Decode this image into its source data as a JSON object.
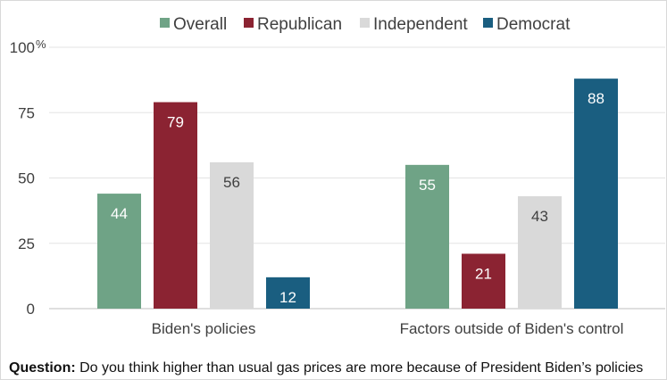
{
  "chart_data": {
    "type": "bar",
    "categories": [
      "Biden's policies",
      "Factors outside of Biden's control"
    ],
    "series": [
      {
        "name": "Overall",
        "color": "#6fa386",
        "values": [
          44,
          55
        ]
      },
      {
        "name": "Republican",
        "color": "#8b2332",
        "values": [
          79,
          21
        ]
      },
      {
        "name": "Independent",
        "color": "#d9d9d9",
        "values": [
          56,
          43
        ]
      },
      {
        "name": "Democrat",
        "color": "#1a5e80",
        "values": [
          12,
          88
        ]
      }
    ],
    "ylim": [
      0,
      100
    ],
    "yticks": [
      "0",
      "25",
      "50",
      "75",
      "100"
    ],
    "y_unit": "%",
    "grid": true,
    "legend": "top",
    "label_colors": {
      "Overall": "#ffffff",
      "Republican": "#ffffff",
      "Independent": "#404040",
      "Democrat": "#ffffff"
    }
  },
  "footer": {
    "question_label": "Question:",
    "question_text": " Do you think higher than usual gas prices are more because of President Biden’s policies"
  }
}
